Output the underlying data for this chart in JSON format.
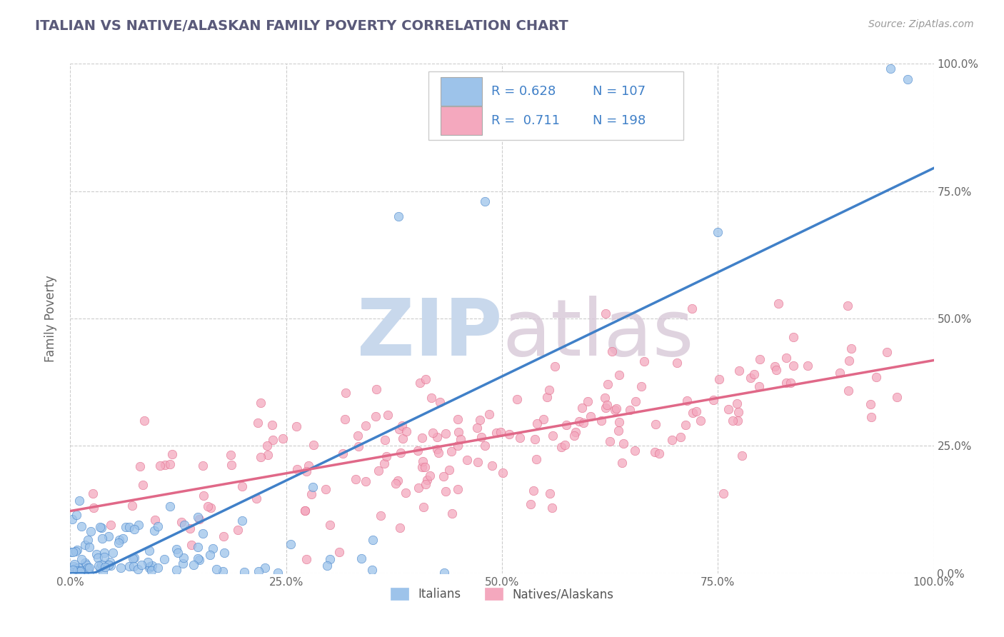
{
  "title": "ITALIAN VS NATIVE/ALASKAN FAMILY POVERTY CORRELATION CHART",
  "source": "Source: ZipAtlas.com",
  "ylabel": "Family Poverty",
  "xlim": [
    0,
    1
  ],
  "ylim": [
    0,
    1
  ],
  "xtick_positions": [
    0.0,
    0.25,
    0.5,
    0.75,
    1.0
  ],
  "xtick_labels": [
    "0.0%",
    "25.0%",
    "50.0%",
    "75.0%",
    "100.0%"
  ],
  "ytick_positions": [
    0.0,
    0.25,
    0.5,
    0.75,
    1.0
  ],
  "ytick_labels_right": [
    "0.0%",
    "25.0%",
    "50.0%",
    "75.0%",
    "100.0%"
  ],
  "legend_r_italian": "0.628",
  "legend_n_italian": "107",
  "legend_r_native": "0.711",
  "legend_n_native": "198",
  "italian_color": "#9DC3EA",
  "native_color": "#F4A8BE",
  "italian_line_color": "#4080C8",
  "native_line_color": "#E06888",
  "title_color": "#5a5a7a",
  "source_color": "#999999",
  "background_color": "#ffffff",
  "grid_color": "#cccccc",
  "watermark_color": "#d8e4f0",
  "watermark_text": "ZIPatlas",
  "n_italian": 107,
  "n_native": 198
}
